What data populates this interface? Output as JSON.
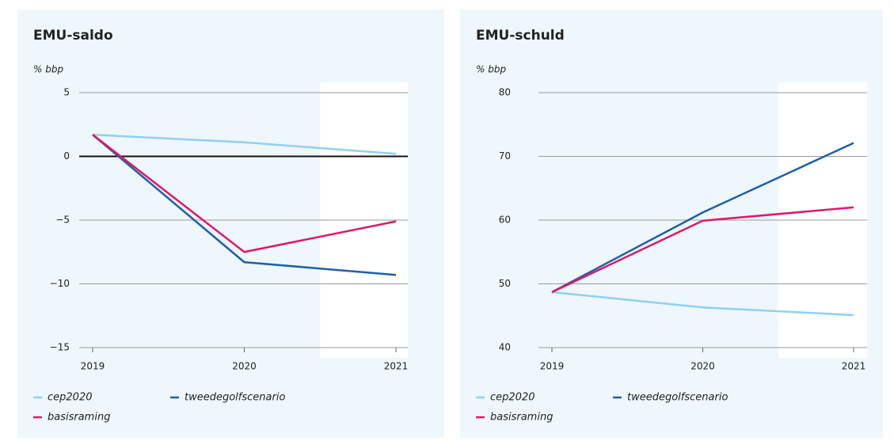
{
  "chart_data": [
    {
      "type": "line",
      "title": "EMU-saldo",
      "y_label": "% bbp",
      "categories": [
        "2019",
        "2020",
        "2021"
      ],
      "ylim": [
        -15,
        5
      ],
      "yticks": [
        5,
        0,
        {
          "value": -5,
          "label": "−5"
        },
        {
          "value": -10,
          "label": "−10"
        },
        {
          "value": -15,
          "label": "−15"
        }
      ],
      "grid": true,
      "series": [
        {
          "name": "cep2020",
          "color": "#8fd0f5",
          "values": [
            1.7,
            1.1,
            0.2
          ]
        },
        {
          "name": "tweedegolfscenario",
          "color": "#1f5fa8",
          "values": [
            1.7,
            -8.3,
            -9.3
          ]
        },
        {
          "name": "basisraming",
          "color": "#e0176b",
          "values": [
            1.7,
            -7.5,
            -5.1
          ]
        }
      ]
    },
    {
      "type": "line",
      "title": "EMU-schuld",
      "y_label": "% bbp",
      "categories": [
        "2019",
        "2020",
        "2021"
      ],
      "ylim": [
        40,
        80
      ],
      "yticks": [
        80,
        70,
        60,
        50,
        40
      ],
      "grid": true,
      "series": [
        {
          "name": "cep2020",
          "color": "#8fd0f5",
          "values": [
            48.7,
            46.3,
            45.1
          ]
        },
        {
          "name": "tweedegolfscenario",
          "color": "#1f5fa8",
          "values": [
            48.7,
            61.2,
            72.1
          ]
        },
        {
          "name": "basisraming",
          "color": "#e0176b",
          "values": [
            48.7,
            59.9,
            62.0
          ]
        }
      ]
    }
  ]
}
